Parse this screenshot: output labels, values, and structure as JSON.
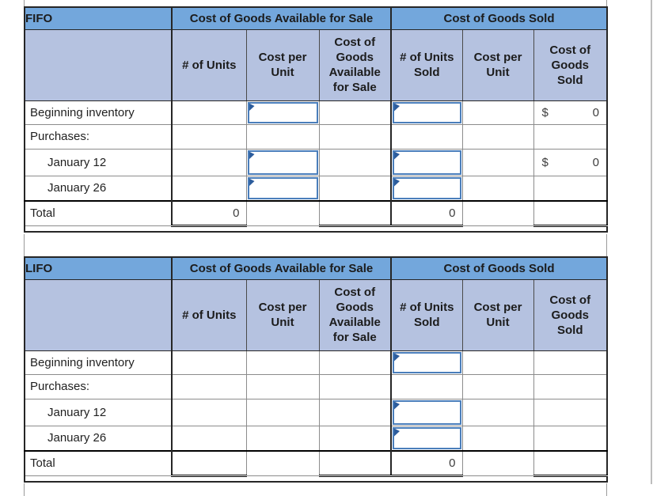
{
  "colors": {
    "band_blue": "#73A7DC",
    "subheader_blue": "#B5C2E0",
    "grid_gray": "#8c8c8c",
    "outer_border": "#262626",
    "input_border_blue": "#4A7EBB",
    "input_marker_blue": "#2C5C9C"
  },
  "tables": [
    {
      "id": "fifo",
      "title": "FIFO",
      "groups": [
        "Cost of Goods Available for Sale",
        "Cost of Goods Sold"
      ],
      "columns": [
        "# of Units",
        "Cost per Unit",
        "Cost of Goods Available for Sale",
        "# of Units Sold",
        "Cost per Unit",
        "Cost of Goods Sold"
      ],
      "colKeys": [
        "units-available",
        "cost-per-unit-available",
        "cost-of-goods-available",
        "units-sold",
        "cost-per-unit-sold",
        "cost-of-goods-sold"
      ],
      "rows": [
        {
          "key": "beginning-inventory",
          "label": "Beginning inventory",
          "indent": false,
          "total": false,
          "cells": [
            {
              "t": "empty"
            },
            {
              "t": "input"
            },
            {
              "t": "empty"
            },
            {
              "t": "input"
            },
            {
              "t": "empty"
            },
            {
              "t": "cur",
              "sym": "$",
              "v": "0"
            }
          ]
        },
        {
          "key": "purchases",
          "label": "Purchases:",
          "indent": false,
          "total": false,
          "cells": [
            {
              "t": "empty"
            },
            {
              "t": "empty"
            },
            {
              "t": "empty"
            },
            {
              "t": "empty"
            },
            {
              "t": "empty"
            },
            {
              "t": "empty"
            }
          ]
        },
        {
          "key": "january-12",
          "label": "January 12",
          "indent": true,
          "total": false,
          "cells": [
            {
              "t": "empty"
            },
            {
              "t": "input"
            },
            {
              "t": "empty"
            },
            {
              "t": "input"
            },
            {
              "t": "empty"
            },
            {
              "t": "cur",
              "sym": "$",
              "v": "0"
            }
          ]
        },
        {
          "key": "january-26",
          "label": "January 26",
          "indent": true,
          "total": false,
          "cells": [
            {
              "t": "empty"
            },
            {
              "t": "input"
            },
            {
              "t": "empty"
            },
            {
              "t": "input"
            },
            {
              "t": "empty"
            },
            {
              "t": "empty"
            }
          ]
        },
        {
          "key": "total",
          "label": "Total",
          "indent": false,
          "total": true,
          "cells": [
            {
              "t": "val",
              "v": "0",
              "dbl": true
            },
            {
              "t": "empty"
            },
            {
              "t": "empty",
              "dbl": true
            },
            {
              "t": "val",
              "v": "0",
              "dbl": true
            },
            {
              "t": "empty"
            },
            {
              "t": "empty",
              "dbl": true
            }
          ]
        }
      ]
    },
    {
      "id": "lifo",
      "title": "LIFO",
      "groups": [
        "Cost of Goods Available for Sale",
        "Cost of Goods Sold"
      ],
      "columns": [
        "# of Units",
        "Cost per Unit",
        "Cost of Goods Available for Sale",
        "# of Units Sold",
        "Cost per Unit",
        "Cost of Goods Sold"
      ],
      "colKeys": [
        "units-available",
        "cost-per-unit-available",
        "cost-of-goods-available",
        "units-sold",
        "cost-per-unit-sold",
        "cost-of-goods-sold"
      ],
      "rows": [
        {
          "key": "beginning-inventory",
          "label": "Beginning inventory",
          "indent": false,
          "total": false,
          "cells": [
            {
              "t": "empty"
            },
            {
              "t": "empty"
            },
            {
              "t": "empty"
            },
            {
              "t": "input"
            },
            {
              "t": "empty"
            },
            {
              "t": "empty"
            }
          ]
        },
        {
          "key": "purchases",
          "label": "Purchases:",
          "indent": false,
          "total": false,
          "cells": [
            {
              "t": "empty"
            },
            {
              "t": "empty"
            },
            {
              "t": "empty"
            },
            {
              "t": "empty"
            },
            {
              "t": "empty"
            },
            {
              "t": "empty"
            }
          ]
        },
        {
          "key": "january-12",
          "label": "January 12",
          "indent": true,
          "total": false,
          "cells": [
            {
              "t": "empty"
            },
            {
              "t": "empty"
            },
            {
              "t": "empty"
            },
            {
              "t": "input"
            },
            {
              "t": "empty"
            },
            {
              "t": "empty"
            }
          ]
        },
        {
          "key": "january-26",
          "label": "January 26",
          "indent": true,
          "total": false,
          "cells": [
            {
              "t": "empty"
            },
            {
              "t": "empty"
            },
            {
              "t": "empty"
            },
            {
              "t": "input"
            },
            {
              "t": "empty"
            },
            {
              "t": "empty"
            }
          ]
        },
        {
          "key": "total",
          "label": "Total",
          "indent": false,
          "total": true,
          "cells": [
            {
              "t": "empty",
              "dbl": true
            },
            {
              "t": "empty"
            },
            {
              "t": "empty",
              "dbl": true
            },
            {
              "t": "val",
              "v": "0",
              "dbl": true
            },
            {
              "t": "empty"
            },
            {
              "t": "empty",
              "dbl": true
            }
          ]
        }
      ]
    }
  ]
}
